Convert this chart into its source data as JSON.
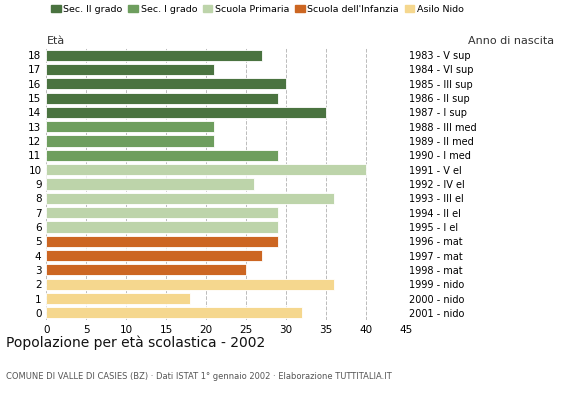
{
  "ages": [
    18,
    17,
    16,
    15,
    14,
    13,
    12,
    11,
    10,
    9,
    8,
    7,
    6,
    5,
    4,
    3,
    2,
    1,
    0
  ],
  "values": [
    27,
    21,
    30,
    29,
    35,
    21,
    21,
    29,
    40,
    26,
    36,
    29,
    29,
    29,
    27,
    25,
    36,
    18,
    32
  ],
  "anno_nascita": [
    "1983 - V sup",
    "1984 - VI sup",
    "1985 - III sup",
    "1986 - II sup",
    "1987 - I sup",
    "1988 - III med",
    "1989 - II med",
    "1990 - I med",
    "1991 - V el",
    "1992 - IV el",
    "1993 - III el",
    "1994 - II el",
    "1995 - I el",
    "1996 - mat",
    "1997 - mat",
    "1998 - mat",
    "1999 - nido",
    "2000 - nido",
    "2001 - nido"
  ],
  "colors_by_age": {
    "18": "#4a7340",
    "17": "#4a7340",
    "16": "#4a7340",
    "15": "#4a7340",
    "14": "#4a7340",
    "13": "#6e9e5e",
    "12": "#6e9e5e",
    "11": "#6e9e5e",
    "10": "#bdd4aa",
    "9": "#bdd4aa",
    "8": "#bdd4aa",
    "7": "#bdd4aa",
    "6": "#bdd4aa",
    "5": "#cc6622",
    "4": "#cc6622",
    "3": "#cc6622",
    "2": "#f5d78e",
    "1": "#f5d78e",
    "0": "#f5d78e"
  },
  "title": "Popolazione per età scolastica - 2002",
  "subtitle": "COMUNE DI VALLE DI CASIES (BZ) · Dati ISTAT 1° gennaio 2002 · Elaborazione TUTTITALIA.IT",
  "xlabel_left": "Età",
  "xlabel_right": "Anno di nascita",
  "xlim": [
    0,
    45
  ],
  "xticks": [
    0,
    5,
    10,
    15,
    20,
    25,
    30,
    35,
    40,
    45
  ],
  "bg_color": "#ffffff",
  "bar_height": 0.78,
  "legend_labels": [
    "Sec. II grado",
    "Sec. I grado",
    "Scuola Primaria",
    "Scuola dell'Infanzia",
    "Asilo Nido"
  ],
  "legend_colors": [
    "#4a7340",
    "#6e9e5e",
    "#bdd4aa",
    "#cc6622",
    "#f5d78e"
  ]
}
